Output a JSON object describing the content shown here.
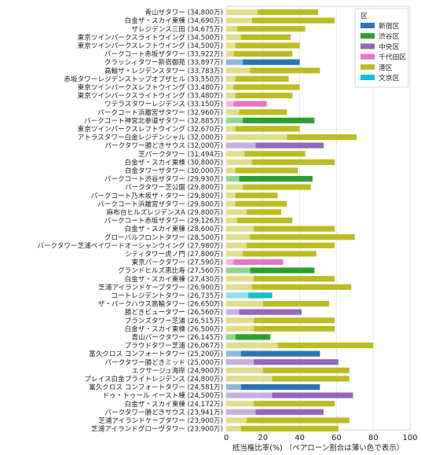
{
  "chart_data": {
    "type": "bar",
    "orientation": "horizontal",
    "stacked_overlay": "lighter segment = pair-loan share, darker segment = remainder",
    "xlabel": "抵当権比率(%) （ペアローン割合は薄い色で表示）",
    "xlim": [
      0,
      100
    ],
    "xticks": [
      0,
      20,
      40,
      60,
      80,
      100
    ],
    "grid": true,
    "legend": {
      "title": "区",
      "position": "top-right",
      "entries": [
        {
          "name": "新宿区",
          "color": "#2b74b8"
        },
        {
          "name": "渋谷区",
          "color": "#2ca02c"
        },
        {
          "name": "中央区",
          "color": "#9467bd"
        },
        {
          "name": "千代田区",
          "color": "#e377c2"
        },
        {
          "name": "港区",
          "color": "#bcbd22"
        },
        {
          "name": "文京区",
          "color": "#17becf"
        }
      ]
    },
    "ward_colors": {
      "新宿区": {
        "dark": "#2b74b8",
        "light": "#8fb8e0"
      },
      "渋谷区": {
        "dark": "#2ca02c",
        "light": "#8fd68f"
      },
      "中央区": {
        "dark": "#9467bd",
        "light": "#c7b0df"
      },
      "千代田区": {
        "dark": "#e377c2",
        "light": "#f2b5df"
      },
      "港区": {
        "dark": "#bcbd22",
        "light": "#dede8c"
      },
      "文京区": {
        "dark": "#17becf",
        "light": "#8fdfe8"
      }
    },
    "bars": [
      {
        "label": "青山ザタワー (34,800万)",
        "ward": "港区",
        "total": 50,
        "pair": 17
      },
      {
        "label": "白金ザ・スカイ東棟 (34,690万)",
        "ward": "港区",
        "total": 59,
        "pair": 14
      },
      {
        "label": "ザレジデンス三田 (34,675万)",
        "ward": "港区",
        "total": 43,
        "pair": 6
      },
      {
        "label": "東京ツインパークスライトウイング (34,500万)",
        "ward": "港区",
        "total": 35,
        "pair": 8
      },
      {
        "label": "東京ツインパークスレフトウイング (34,500万)",
        "ward": "港区",
        "total": 40,
        "pair": 5
      },
      {
        "label": "パークコート赤坂ザタワー (33,922万)",
        "ward": "港区",
        "total": 36,
        "pair": 4
      },
      {
        "label": "クラッシィタワー新宿御苑 (33,897万)",
        "ward": "新宿区",
        "total": 40,
        "pair": 9
      },
      {
        "label": "高輪ザ・レジデンスタワー (33,783万)",
        "ward": "港区",
        "total": 51,
        "pair": 13
      },
      {
        "label": "赤坂タワーレジデンストップオブザヒル (33,550万)",
        "ward": "港区",
        "total": 34,
        "pair": 5
      },
      {
        "label": "東京ツインパークスレフトウイング (33,480万)",
        "ward": "港区",
        "total": 40,
        "pair": 4
      },
      {
        "label": "東京ツインパークスライトウイング (33,480万)",
        "ward": "港区",
        "total": 36,
        "pair": 5
      },
      {
        "label": "ワテラスタワーレジデンス (33,150万)",
        "ward": "千代田区",
        "total": 22,
        "pair": 4
      },
      {
        "label": "パークコート浜離宮ザタワー (32,960万)",
        "ward": "港区",
        "total": 33,
        "pair": 7
      },
      {
        "label": "パークコート神宮北参道ザタワー (32,885万)",
        "ward": "渋谷区",
        "total": 48,
        "pair": 9
      },
      {
        "label": "東京ツインパークスレフトウイング (32,670万)",
        "ward": "港区",
        "total": 40,
        "pair": 5
      },
      {
        "label": "アトラスタワー白金レジデンシャル (32,000万)",
        "ward": "港区",
        "total": 71,
        "pair": 33
      },
      {
        "label": "パークタワー勝どきサウス (32,000万)",
        "ward": "中央区",
        "total": 53,
        "pair": 16
      },
      {
        "label": "芝パークタワー (31,494万)",
        "ward": "港区",
        "total": 43,
        "pair": 10
      },
      {
        "label": "白金ザ・スカイ東棟 (30,800万)",
        "ward": "港区",
        "total": 59,
        "pair": 14
      },
      {
        "label": "白金タワーザタワー (30,000万)",
        "ward": "港区",
        "total": 39,
        "pair": 5
      },
      {
        "label": "パークコート渋谷ザタワー (29,930万)",
        "ward": "渋谷区",
        "total": 47,
        "pair": 7
      },
      {
        "label": "パークタワー芝公園 (29,800万)",
        "ward": "港区",
        "total": 46,
        "pair": 9
      },
      {
        "label": "パークコート乃木坂ザ・タワー (29,800万)",
        "ward": "港区",
        "total": 28,
        "pair": 5
      },
      {
        "label": "パークコート浜離宮ザタワー (29,800万)",
        "ward": "港区",
        "total": 33,
        "pair": 5
      },
      {
        "label": "麻布台ヒルズレジデンスA (29,800万)",
        "ward": "港区",
        "total": 30,
        "pair": 11
      },
      {
        "label": "パークコート赤坂ザタワー (29,126万)",
        "ward": "港区",
        "total": 36,
        "pair": 6
      },
      {
        "label": "白金ザ・スカイ東棟 (28,600万)",
        "ward": "港区",
        "total": 59,
        "pair": 15
      },
      {
        "label": "グローバルフロントタワー (28,500万)",
        "ward": "港区",
        "total": 70,
        "pair": 13
      },
      {
        "label": "パークタワー芝浦ベイワードオーシャンウイング (27,980万)",
        "ward": "港区",
        "total": 59,
        "pair": 11
      },
      {
        "label": "シティタワー虎ノ門 (27,800万)",
        "ward": "港区",
        "total": 49,
        "pair": 9
      },
      {
        "label": "東京パークタワー (27,590万)",
        "ward": "千代田区",
        "total": 31,
        "pair": 4
      },
      {
        "label": "グランドヒルズ恵比寿 (27,560万)",
        "ward": "渋谷区",
        "total": 48,
        "pair": 13
      },
      {
        "label": "白金ザ・スカイ東棟 (27,430万)",
        "ward": "港区",
        "total": 59,
        "pair": 15
      },
      {
        "label": "芝浦アイランドケープタワー (26,900万)",
        "ward": "港区",
        "total": 68,
        "pair": 14
      },
      {
        "label": "コートレジデントタワー (26,735万)",
        "ward": "文京区",
        "total": 25,
        "pair": 12
      },
      {
        "label": "ザ・パークハウス高輪タワー (26,650万)",
        "ward": "港区",
        "total": 56,
        "pair": 20
      },
      {
        "label": "勝どきビュータワー (26,560万)",
        "ward": "中央区",
        "total": 41,
        "pair": 7
      },
      {
        "label": "ブランズタワー芝浦 (26,515万)",
        "ward": "港区",
        "total": 59,
        "pair": 15
      },
      {
        "label": "白金ザ・スカイ東棟 (26,500万)",
        "ward": "港区",
        "total": 59,
        "pair": 15
      },
      {
        "label": "青山パークタワー (26,145万)",
        "ward": "渋谷区",
        "total": 24,
        "pair": 5
      },
      {
        "label": "プラウドタワー芝浦 (26,067万)",
        "ward": "港区",
        "total": 80,
        "pair": 28
      },
      {
        "label": "富久クロス コンフォートタワー (25,200万)",
        "ward": "新宿区",
        "total": 51,
        "pair": 8
      },
      {
        "label": "パークタワー勝どきミッド (25,000万)",
        "ward": "中央区",
        "total": 61,
        "pair": 15
      },
      {
        "label": "エクサージュ海岸 (24,900万)",
        "ward": "港区",
        "total": 67,
        "pair": 20
      },
      {
        "label": "プレイス白金プライトレジデンス (24,800万)",
        "ward": "港区",
        "total": 67,
        "pair": 25
      },
      {
        "label": "富久クロス コンフォートタワー (24,581万)",
        "ward": "新宿区",
        "total": 51,
        "pair": 8
      },
      {
        "label": "ドゥ・トゥール イースト棟 (24,500万)",
        "ward": "中央区",
        "total": 69,
        "pair": 25
      },
      {
        "label": "白金ザ・スカイ東棟 (24,172万)",
        "ward": "港区",
        "total": 59,
        "pair": 15
      },
      {
        "label": "パークタワー勝どきサウス (23,941万)",
        "ward": "中央区",
        "total": 53,
        "pair": 16
      },
      {
        "label": "芝浦アイランドケープタワー (23,900万)",
        "ward": "港区",
        "total": 67,
        "pair": 11
      },
      {
        "label": "芝浦アイランドグローヴタワー (23,900万)",
        "ward": "港区",
        "total": 61,
        "pair": 8
      }
    ]
  }
}
